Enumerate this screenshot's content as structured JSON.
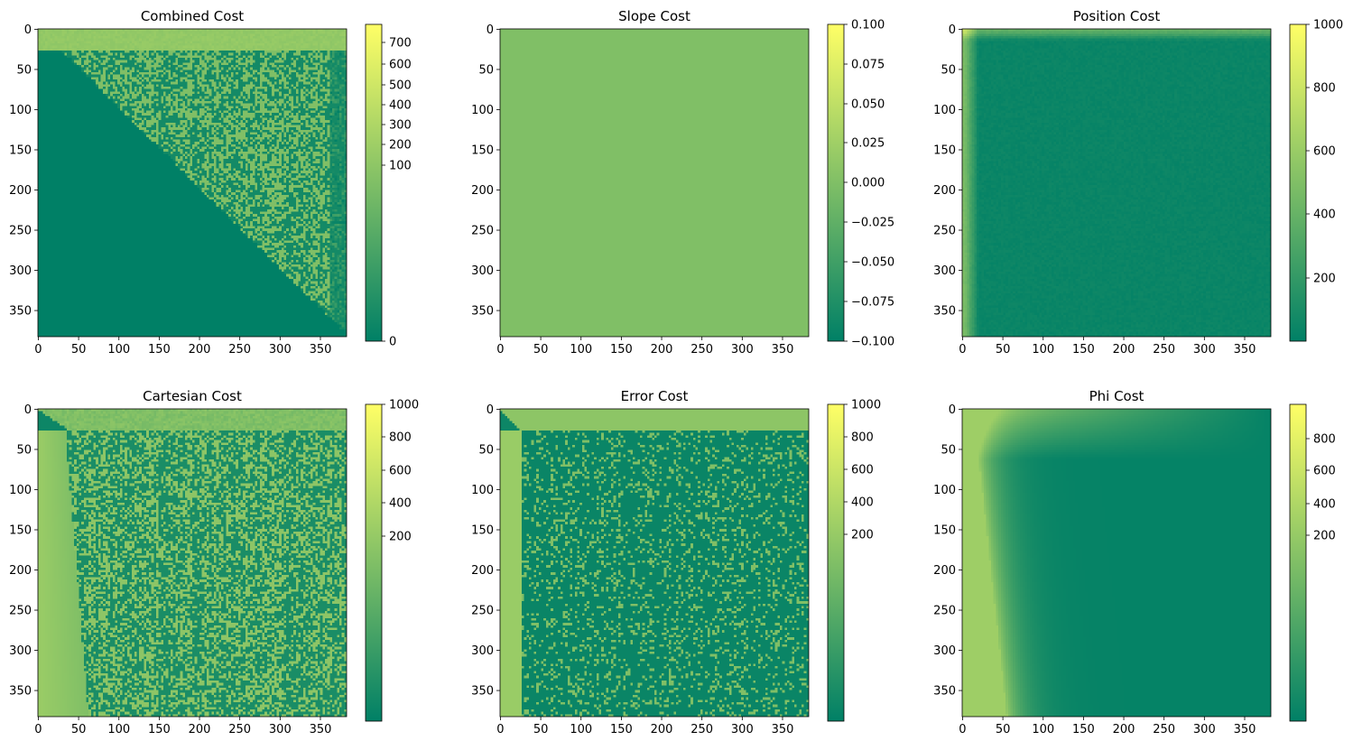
{
  "chart_data": [
    {
      "type": "heatmap",
      "title": "Combined Cost",
      "pattern": "upper-triangle",
      "xticks": [
        "0",
        "50",
        "100",
        "150",
        "200",
        "250",
        "300",
        "350"
      ],
      "yticks": [
        "0",
        "50",
        "100",
        "150",
        "200",
        "250",
        "300",
        "350"
      ],
      "colorbar": {
        "scale": "symlog",
        "range": [
          0,
          750
        ],
        "ticks": [
          "700",
          "600",
          "500",
          "400",
          "300",
          "200",
          "100",
          "0"
        ]
      },
      "size": 383
    },
    {
      "type": "heatmap",
      "title": "Slope Cost",
      "pattern": "uniform",
      "value": 0.0,
      "xticks": [
        "0",
        "50",
        "100",
        "150",
        "200",
        "250",
        "300",
        "350"
      ],
      "yticks": [
        "0",
        "50",
        "100",
        "150",
        "200",
        "250",
        "300",
        "350"
      ],
      "colorbar": {
        "scale": "linear",
        "range": [
          -0.1,
          0.1
        ],
        "ticks": [
          "0.100",
          "0.075",
          "0.050",
          "0.025",
          "0.000",
          "−0.025",
          "−0.050",
          "−0.075",
          "−0.100"
        ]
      },
      "size": 383
    },
    {
      "type": "heatmap",
      "title": "Position Cost",
      "pattern": "left-bright",
      "xticks": [
        "0",
        "50",
        "100",
        "150",
        "200",
        "250",
        "300",
        "350"
      ],
      "yticks": [
        "0",
        "50",
        "100",
        "150",
        "200",
        "250",
        "300",
        "350"
      ],
      "colorbar": {
        "scale": "linear",
        "range": [
          20,
          1000
        ],
        "ticks": [
          "1000",
          "800",
          "600",
          "400",
          "200"
        ]
      },
      "size": 383
    },
    {
      "type": "heatmap",
      "title": "Cartesian Cost",
      "pattern": "left-band-noisy",
      "xticks": [
        "0",
        "50",
        "100",
        "150",
        "200",
        "250",
        "300",
        "350"
      ],
      "yticks": [
        "0",
        "50",
        "100",
        "150",
        "200",
        "250",
        "300",
        "350"
      ],
      "colorbar": {
        "scale": "log",
        "range": [
          20,
          1000
        ],
        "ticks": [
          "1000",
          "800",
          "600",
          "400",
          "200"
        ]
      },
      "size": 383
    },
    {
      "type": "heatmap",
      "title": "Error Cost",
      "pattern": "frame-noisy",
      "xticks": [
        "0",
        "50",
        "100",
        "150",
        "200",
        "250",
        "300",
        "350"
      ],
      "yticks": [
        "0",
        "50",
        "100",
        "150",
        "200",
        "250",
        "300",
        "350"
      ],
      "colorbar": {
        "scale": "log",
        "range": [
          20,
          1000
        ],
        "ticks": [
          "1000",
          "800",
          "600",
          "400",
          "200"
        ]
      },
      "size": 383
    },
    {
      "type": "heatmap",
      "title": "Phi Cost",
      "pattern": "smooth-gradient",
      "xticks": [
        "0",
        "50",
        "100",
        "150",
        "200",
        "250",
        "300",
        "350"
      ],
      "yticks": [
        "0",
        "50",
        "100",
        "150",
        "200",
        "250",
        "300",
        "350"
      ],
      "colorbar": {
        "scale": "log",
        "range": [
          20,
          1000
        ],
        "ticks": [
          "800",
          "600",
          "400",
          "200"
        ]
      },
      "size": 383
    }
  ],
  "colormap": [
    "#008066",
    "#80bf66",
    "#ffff66"
  ]
}
